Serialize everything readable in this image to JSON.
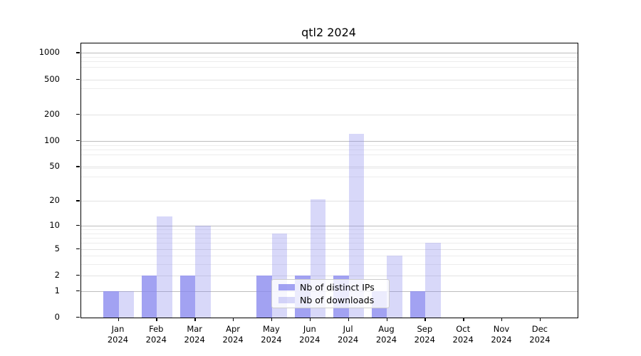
{
  "title": "qtl2 2024",
  "legend": {
    "items": [
      {
        "label": "Nb of distinct IPs",
        "series": "distinct_ips"
      },
      {
        "label": "Nb of downloads",
        "series": "downloads"
      }
    ],
    "position": "lower center inside plot, overlapping Aug bars"
  },
  "colors": {
    "bar_base": "#8888ee",
    "distinct_ips_solid": "#a7a7ef",
    "downloads_solid": "#d8d8f7",
    "grid_major": "#bdbdbd",
    "grid_minor": "#ededed",
    "axis": "#000000"
  },
  "chart_data": {
    "type": "bar",
    "title": "qtl2 2024",
    "categories": [
      "Jan",
      "Feb",
      "Mar",
      "Apr",
      "May",
      "Jun",
      "Jul",
      "Aug",
      "Sep",
      "Oct",
      "Nov",
      "Dec"
    ],
    "year_label": "2024",
    "x_tick_labels": [
      "Jan\n2024",
      "Feb\n2024",
      "Mar\n2024",
      "Apr\n2024",
      "May\n2024",
      "Jun\n2024",
      "Jul\n2024",
      "Aug\n2024",
      "Sep\n2024",
      "Oct\n2024",
      "Nov\n2024",
      "Dec\n2024"
    ],
    "series": [
      {
        "name": "Nb of distinct IPs",
        "values": [
          1,
          2,
          2,
          0,
          2,
          2,
          2,
          1,
          1,
          0,
          0,
          0
        ]
      },
      {
        "name": "Nb of downloads",
        "values": [
          1,
          13,
          10,
          0,
          8,
          21,
          120,
          4,
          6,
          0,
          0,
          0
        ]
      }
    ],
    "y_ticks": [
      0,
      1,
      2,
      5,
      10,
      20,
      50,
      100,
      200,
      500,
      1000
    ],
    "y_scale": "log10(value+1)",
    "ylim_top_value": 1280,
    "grid": true,
    "legend_position": "lower center"
  }
}
